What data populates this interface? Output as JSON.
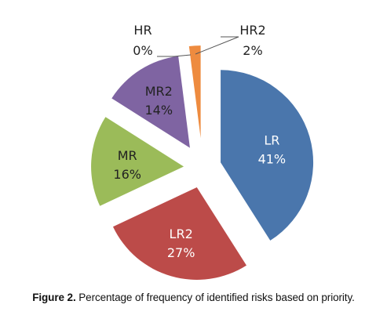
{
  "chart_data": {
    "type": "pie",
    "categories": [
      "LR",
      "LR2",
      "MR",
      "MR2",
      "HR",
      "HR2"
    ],
    "values": [
      41,
      27,
      16,
      14,
      0,
      2
    ],
    "value_labels": [
      "41%",
      "27%",
      "16%",
      "14%",
      "0%",
      "2%"
    ],
    "colors": [
      "#4A76AC",
      "#BC4B49",
      "#9BBB59",
      "#7F64A2",
      "#4BACC6",
      "#EE8B3F"
    ],
    "exploded": true,
    "legend": "none"
  },
  "caption": {
    "figure_number": "Figure 2.",
    "text": " Percentage of frequency of identified risks based on priority."
  }
}
